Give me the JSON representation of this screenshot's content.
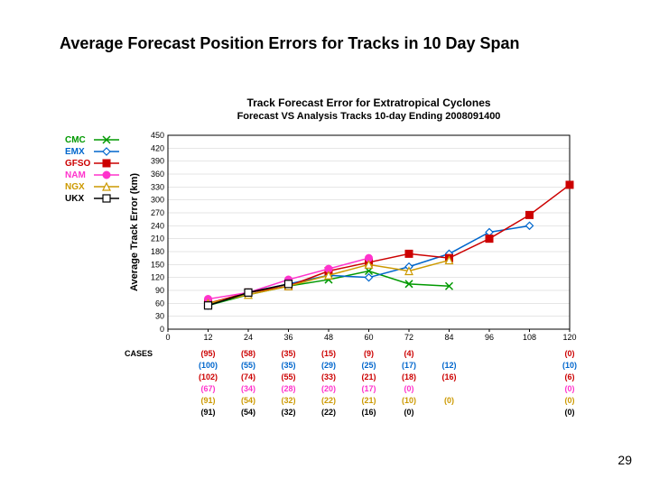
{
  "page": {
    "title": "Average Forecast Position Errors for Tracks in 10 Day Span",
    "number": "29"
  },
  "chart": {
    "type": "line",
    "title_line1": "Track Forecast Error for Extratropical Cyclones",
    "title_line2": "Forecast VS Analysis Tracks 10-day Ending 2008091400",
    "ylabel": "Average Track Error (km)",
    "cases_label": "CASES",
    "background": "#ffffff",
    "grid_color": "#cccccc",
    "axis_color": "#000000",
    "title_color": "#000000",
    "ytick_font": 9,
    "ylim": [
      0,
      450
    ],
    "ytick_step": 30,
    "x_ticks": [
      "0",
      "12",
      "24",
      "36",
      "48",
      "60",
      "72",
      "84",
      "96",
      "108",
      "120"
    ],
    "x_shown": [
      0,
      12,
      24,
      36,
      48,
      60,
      72,
      84,
      96,
      108,
      120
    ],
    "series": [
      {
        "name": "CMC",
        "color": "#009900",
        "marker": "x",
        "data": [
          [
            12,
            55
          ],
          [
            24,
            80
          ],
          [
            36,
            100
          ],
          [
            48,
            115
          ],
          [
            60,
            135
          ],
          [
            72,
            105
          ],
          [
            84,
            100
          ]
        ]
      },
      {
        "name": "EMX",
        "color": "#0066cc",
        "marker": "diamond",
        "data": [
          [
            12,
            55
          ],
          [
            24,
            85
          ],
          [
            36,
            105
          ],
          [
            48,
            125
          ],
          [
            60,
            120
          ],
          [
            72,
            145
          ],
          [
            84,
            175
          ],
          [
            96,
            225
          ],
          [
            108,
            240
          ]
        ]
      },
      {
        "name": "GFSO",
        "color": "#cc0000",
        "marker": "square",
        "data": [
          [
            12,
            60
          ],
          [
            24,
            85
          ],
          [
            36,
            100
          ],
          [
            48,
            135
          ],
          [
            60,
            155
          ],
          [
            72,
            175
          ],
          [
            84,
            165
          ],
          [
            96,
            210
          ],
          [
            108,
            265
          ],
          [
            120,
            335
          ]
        ]
      },
      {
        "name": "NAM",
        "color": "#ff33cc",
        "marker": "circle",
        "data": [
          [
            12,
            70
          ],
          [
            24,
            85
          ],
          [
            36,
            115
          ],
          [
            48,
            140
          ],
          [
            60,
            165
          ]
        ]
      },
      {
        "name": "NGX",
        "color": "#cc9900",
        "marker": "triangle",
        "data": [
          [
            12,
            60
          ],
          [
            24,
            80
          ],
          [
            36,
            100
          ],
          [
            48,
            125
          ],
          [
            60,
            150
          ],
          [
            72,
            135
          ],
          [
            84,
            160
          ]
        ]
      },
      {
        "name": "UKX",
        "color": "#000000",
        "marker": "square-open",
        "data": [
          [
            12,
            55
          ],
          [
            24,
            85
          ],
          [
            36,
            105
          ]
        ]
      }
    ],
    "cases": [
      {
        "color": "#cc0000",
        "values": [
          "(95)",
          "(58)",
          "(35)",
          "(15)",
          "(9)",
          "(4)",
          "",
          "",
          "",
          "(0)"
        ]
      },
      {
        "color": "#0066cc",
        "values": [
          "(100)",
          "(55)",
          "(35)",
          "(29)",
          "(25)",
          "(17)",
          "(12)",
          "",
          "",
          "(10)"
        ]
      },
      {
        "color": "#cc0000",
        "values": [
          "(102)",
          "(74)",
          "(55)",
          "(33)",
          "(21)",
          "(18)",
          "(16)",
          "",
          "",
          "(6)"
        ]
      },
      {
        "color": "#ff33cc",
        "values": [
          "(67)",
          "(34)",
          "(28)",
          "(20)",
          "(17)",
          "(0)",
          "",
          "",
          "",
          "(0)"
        ]
      },
      {
        "color": "#cc9900",
        "values": [
          "(91)",
          "(54)",
          "(32)",
          "(22)",
          "(21)",
          "(10)",
          "(0)",
          "",
          "",
          "(0)"
        ]
      },
      {
        "color": "#000000",
        "values": [
          "(91)",
          "(54)",
          "(32)",
          "(22)",
          "(16)",
          "(0)",
          "",
          "",
          "",
          "(0)"
        ]
      }
    ]
  }
}
